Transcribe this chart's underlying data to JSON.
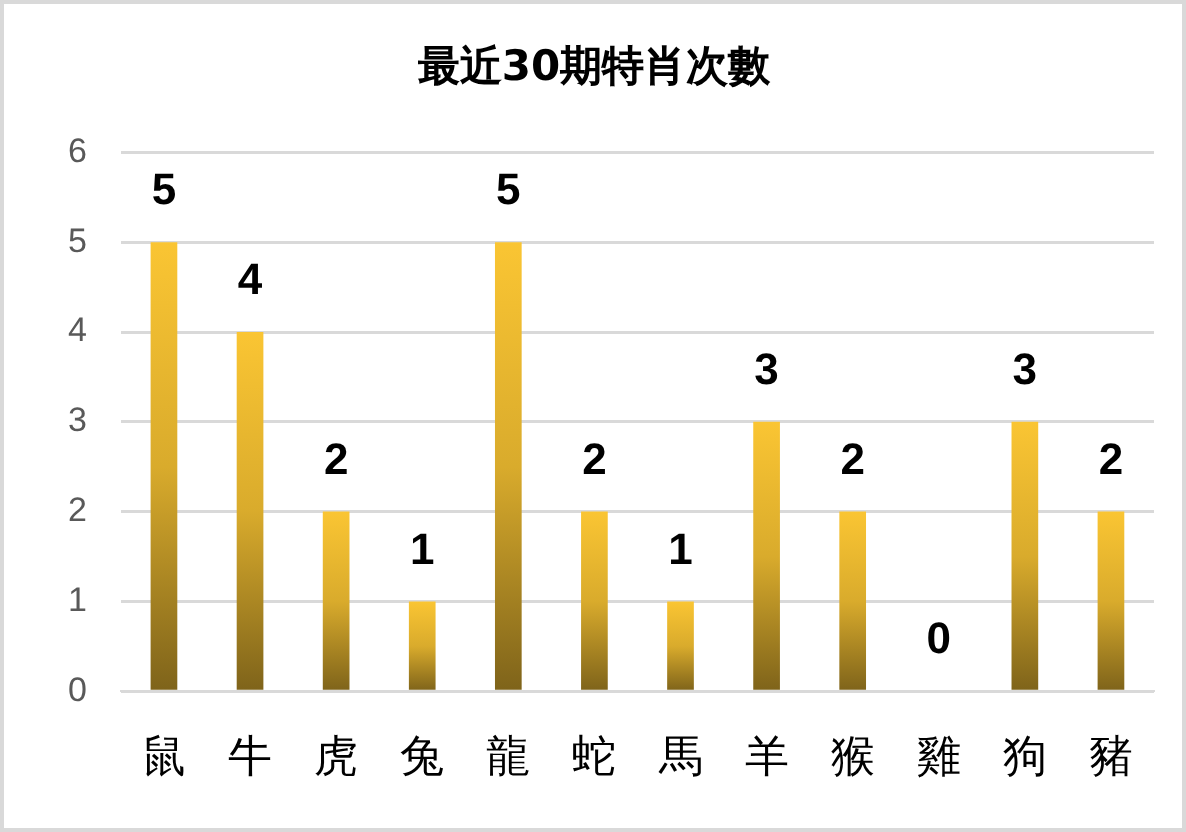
{
  "chart_data": {
    "type": "bar",
    "title": "最近30期特肖次數",
    "categories": [
      "鼠",
      "牛",
      "虎",
      "兔",
      "龍",
      "蛇",
      "馬",
      "羊",
      "猴",
      "雞",
      "狗",
      "豬"
    ],
    "values": [
      5,
      4,
      2,
      1,
      5,
      2,
      1,
      3,
      2,
      0,
      3,
      2
    ],
    "color": "#d9ab2c",
    "ylim": [
      0,
      6
    ],
    "yticks": [
      0,
      1,
      2,
      3,
      4,
      5,
      6
    ],
    "grid": "y",
    "data_labels": true
  }
}
